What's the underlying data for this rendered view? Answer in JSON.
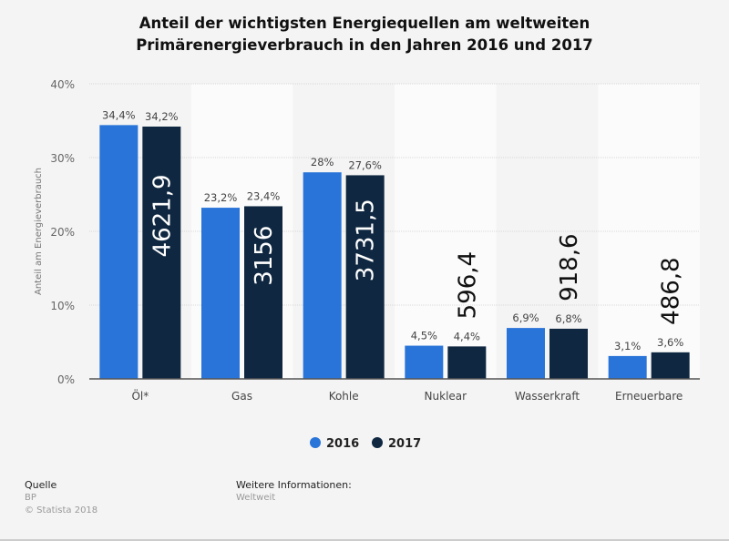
{
  "chart_data": {
    "type": "bar",
    "title_line1": "Anteil der wichtigsten Energiequellen am weltweiten",
    "title_line2": "Primärenergieverbrauch in den Jahren 2016 und 2017",
    "ylabel": "Anteil am Energieverbrauch",
    "xlabel": "",
    "ylim": [
      0,
      40
    ],
    "yticks": [
      0,
      10,
      20,
      30,
      40
    ],
    "ytick_labels": [
      "0%",
      "10%",
      "20%",
      "30%",
      "40%"
    ],
    "grid": true,
    "legend_placement": "bottom",
    "categories": [
      "Öl*",
      "Gas",
      "Kohle",
      "Nuklear",
      "Wasserkraft",
      "Erneuerbare"
    ],
    "series": [
      {
        "name": "2016",
        "color": "#2874d9",
        "values": [
          34.4,
          23.2,
          28,
          4.5,
          6.9,
          3.1
        ],
        "labels": [
          "34,4%",
          "23,2%",
          "28%",
          "4,5%",
          "6,9%",
          "3,1%"
        ]
      },
      {
        "name": "2017",
        "color": "#0f2740",
        "values": [
          34.2,
          23.4,
          27.6,
          4.4,
          6.8,
          3.6
        ],
        "labels": [
          "34,2%",
          "23,4%",
          "27,6%",
          "4,4%",
          "6,8%",
          "3,6%"
        ]
      }
    ],
    "annotations": [
      "4621,9",
      "3156",
      "3731,5",
      "596,4",
      "918,6",
      "486,8"
    ]
  },
  "footer": {
    "source_heading": "Quelle",
    "source": "BP",
    "copyright": "© Statista 2018",
    "info_heading": "Weitere Informationen:",
    "info": "Weltweit"
  }
}
